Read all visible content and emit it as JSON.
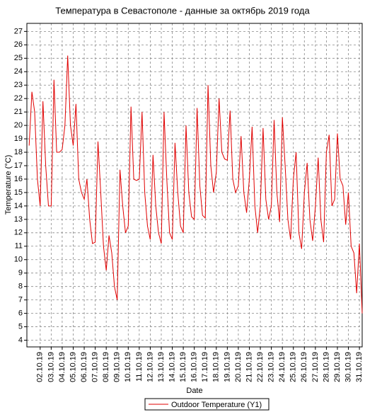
{
  "chart_data": {
    "type": "line",
    "title": "Температура в Севастополе - данные за октябрь 2019 года",
    "x_label": "Date",
    "y_label": "Temperature (°C)",
    "x": [
      "01.10.19 00:00",
      "01.10.19 06:00",
      "01.10.19 12:00",
      "01.10.19 18:00",
      "02.10.19 00:00",
      "02.10.19 06:00",
      "02.10.19 12:00",
      "02.10.19 18:00",
      "03.10.19 00:00",
      "03.10.19 06:00",
      "03.10.19 12:00",
      "03.10.19 18:00",
      "04.10.19 00:00",
      "04.10.19 06:00",
      "04.10.19 12:00",
      "04.10.19 18:00",
      "05.10.19 00:00",
      "05.10.19 06:00",
      "05.10.19 12:00",
      "05.10.19 18:00",
      "06.10.19 00:00",
      "06.10.19 06:00",
      "06.10.19 12:00",
      "06.10.19 18:00",
      "07.10.19 00:00",
      "07.10.19 06:00",
      "07.10.19 12:00",
      "07.10.19 18:00",
      "08.10.19 00:00",
      "08.10.19 06:00",
      "08.10.19 12:00",
      "08.10.19 18:00",
      "09.10.19 00:00",
      "09.10.19 06:00",
      "09.10.19 12:00",
      "09.10.19 18:00",
      "10.10.19 00:00",
      "10.10.19 06:00",
      "10.10.19 12:00",
      "10.10.19 18:00",
      "11.10.19 00:00",
      "11.10.19 06:00",
      "11.10.19 12:00",
      "11.10.19 18:00",
      "12.10.19 00:00",
      "12.10.19 06:00",
      "12.10.19 12:00",
      "12.10.19 18:00",
      "13.10.19 00:00",
      "13.10.19 06:00",
      "13.10.19 12:00",
      "13.10.19 18:00",
      "14.10.19 00:00",
      "14.10.19 06:00",
      "14.10.19 12:00",
      "14.10.19 18:00",
      "15.10.19 00:00",
      "15.10.19 06:00",
      "15.10.19 12:00",
      "15.10.19 18:00",
      "16.10.19 00:00",
      "16.10.19 06:00",
      "16.10.19 12:00",
      "16.10.19 18:00",
      "17.10.19 00:00",
      "17.10.19 06:00",
      "17.10.19 12:00",
      "17.10.19 18:00",
      "18.10.19 00:00",
      "18.10.19 06:00",
      "18.10.19 12:00",
      "18.10.19 18:00",
      "19.10.19 00:00",
      "19.10.19 06:00",
      "19.10.19 12:00",
      "19.10.19 18:00",
      "20.10.19 00:00",
      "20.10.19 06:00",
      "20.10.19 12:00",
      "20.10.19 18:00",
      "21.10.19 00:00",
      "21.10.19 06:00",
      "21.10.19 12:00",
      "21.10.19 18:00",
      "22.10.19 00:00",
      "22.10.19 06:00",
      "22.10.19 12:00",
      "22.10.19 18:00",
      "23.10.19 00:00",
      "23.10.19 06:00",
      "23.10.19 12:00",
      "23.10.19 18:00",
      "24.10.19 00:00",
      "24.10.19 06:00",
      "24.10.19 12:00",
      "24.10.19 18:00",
      "25.10.19 00:00",
      "25.10.19 06:00",
      "25.10.19 12:00",
      "25.10.19 18:00",
      "26.10.19 00:00",
      "26.10.19 06:00",
      "26.10.19 12:00",
      "26.10.19 18:00",
      "27.10.19 00:00",
      "27.10.19 06:00",
      "27.10.19 12:00",
      "27.10.19 18:00",
      "28.10.19 00:00",
      "28.10.19 06:00",
      "28.10.19 12:00",
      "28.10.19 18:00",
      "29.10.19 00:00",
      "29.10.19 06:00",
      "29.10.19 12:00",
      "29.10.19 18:00",
      "30.10.19 00:00",
      "30.10.19 06:00",
      "30.10.19 12:00",
      "30.10.19 18:00",
      "31.10.19 00:00",
      "31.10.19 06:00"
    ],
    "series": [
      {
        "name": "Outdoor Temperature (Y1)",
        "color": "#e00000",
        "values": [
          18.5,
          22.5,
          21,
          16,
          14,
          21.8,
          17,
          14,
          14,
          23.4,
          18,
          18,
          18.2,
          20,
          25.2,
          20,
          18.5,
          21.6,
          16,
          15,
          14.5,
          16,
          13,
          11.2,
          11.3,
          18.8,
          15,
          11,
          9.2,
          11.8,
          10.5,
          8,
          7,
          16.7,
          14,
          12,
          12.5,
          21.4,
          16,
          15.9,
          16,
          21,
          15,
          12.5,
          11.5,
          17.8,
          14,
          12,
          11.2,
          21,
          16,
          12,
          11.5,
          18.7,
          15,
          12.5,
          12,
          20,
          15,
          13.2,
          13,
          21.3,
          15.5,
          13.3,
          13.1,
          23,
          17,
          15,
          16.5,
          22,
          18,
          17.5,
          17.4,
          21.1,
          16,
          15,
          15.5,
          19.2,
          15,
          13.5,
          16,
          19.9,
          14,
          12,
          14,
          19.8,
          14.5,
          13,
          14,
          20.4,
          15,
          12.8,
          20.6,
          17,
          13,
          11.5,
          16,
          18,
          12,
          10.8,
          15,
          17.2,
          13,
          11.4,
          14,
          17.6,
          13,
          11.3,
          18,
          19.3,
          14,
          14.5,
          19.4,
          16,
          15.5,
          12.6,
          15,
          11,
          10.5,
          7.5,
          11.2,
          6
        ]
      }
    ],
    "xlim": [
      "30.09.19 19:00",
      "31.10.19 06:00"
    ],
    "xticks": [
      "02.10.19",
      "03.10.19",
      "04.10.19",
      "05.10.19",
      "06.10.19",
      "07.10.19",
      "08.10.19",
      "09.10.19",
      "10.10.19",
      "11.10.19",
      "12.10.19",
      "13.10.19",
      "14.10.19",
      "15.10.19",
      "16.10.19",
      "17.10.19",
      "18.10.19",
      "19.10.19",
      "20.10.19",
      "21.10.19",
      "22.10.19",
      "23.10.19",
      "24.10.19",
      "25.10.19",
      "26.10.19",
      "27.10.19",
      "28.10.19",
      "29.10.19",
      "30.10.19",
      "31.10.19"
    ],
    "ylim": [
      3.5,
      27.6
    ],
    "yticks": [
      4,
      5,
      6,
      7,
      8,
      9,
      10,
      11,
      12,
      13,
      14,
      15,
      16,
      17,
      18,
      19,
      20,
      21,
      22,
      23,
      24,
      25,
      26,
      27
    ],
    "grid": true
  }
}
